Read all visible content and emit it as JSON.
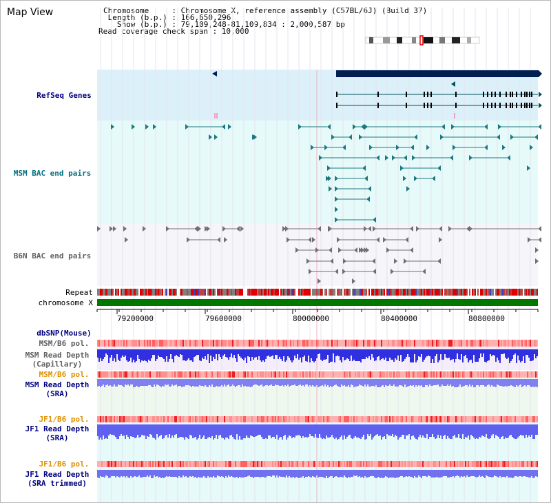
{
  "header": {
    "title": "Map View",
    "chromosome_line": "Chromosome     : Chromosome X, reference assembly (C57BL/6J) (Build 37)",
    "length_line": " Length (b.p.) : 166,650,296",
    "show_line": "   Show (b.p.) : 79,109,248-81,109,834 : 2,000,587 bp",
    "coverage_line": "Read coverage check span : 10,000"
  },
  "tracks": {
    "refseq": "RefSeq Genes",
    "msm_bac": "MSM BAC end pairs",
    "b6n_bac": "B6N BAC end pairs",
    "repeat": "Repeat",
    "chromosome": "chromosome X",
    "dbsnp": "dbSNP(Mouse)",
    "msm_b6_pol_1": "MSM/B6 pol.",
    "msm_read_depth_cap": "MSM Read Depth\n(Capillary)",
    "msm_b6_pol_2": "MSM/B6 pol.",
    "msm_read_depth_sra": "MSM Read Depth\n(SRA)",
    "jf1_b6_pol_1": "JF1/B6 pol.",
    "jf1_read_depth_sra": "JF1 Read Depth\n(SRA)",
    "jf1_b6_pol_2": "JF1/B6 pol.",
    "jf1_read_depth_trim": "JF1 Read Depth\n(SRA trimmed)"
  },
  "axis": {
    "ticks": [
      "79200000",
      "79600000",
      "80000000",
      "80400000",
      "80800000"
    ]
  },
  "colors": {
    "refseq_bg": "#dcf0fa",
    "msm_bg": "#e6fafa",
    "b6n_bg": "#f5f5fa",
    "gene": "#00505a",
    "gene_dark": "#001e50",
    "msm_pair": "#1e7880",
    "b6n_pair": "#707070",
    "chromosome_bar": "#007800",
    "navy_label": "#000080",
    "teal_label": "#007080",
    "gray_label": "#606060",
    "orange_label": "#e09000",
    "depth_blue": "#3030e0",
    "depth_light": "#8080f0"
  }
}
